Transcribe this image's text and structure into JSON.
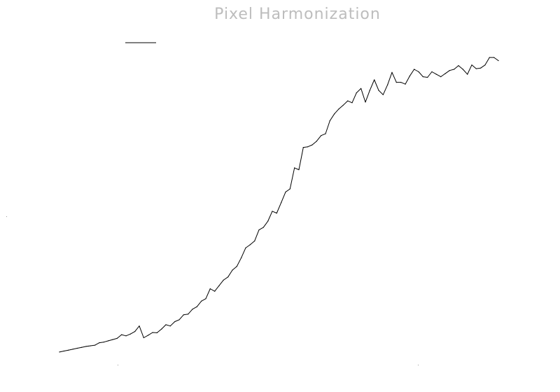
{
  "chart_data": {
    "type": "line",
    "title": "Pixel Harmonization",
    "xlabel": "",
    "ylabel": "",
    "legend": "top-left",
    "grid": false,
    "colors": {
      "line": "#000000",
      "legend": "#000000",
      "title": "#bdbdbd"
    },
    "x": [
      0,
      1,
      2,
      3,
      4,
      5,
      6,
      7,
      8,
      9,
      10,
      11,
      12,
      13,
      14,
      15,
      16,
      17,
      18,
      19,
      20,
      21,
      22,
      23,
      24,
      25,
      26,
      27,
      28,
      29,
      30,
      31,
      32,
      33,
      34,
      35,
      36,
      37,
      38,
      39,
      40,
      41,
      42,
      43,
      44,
      45,
      46,
      47,
      48,
      49,
      50,
      51,
      52,
      53,
      54,
      55,
      56,
      57,
      58,
      59,
      60,
      61,
      62,
      63,
      64,
      65,
      66,
      67,
      68,
      69,
      70,
      71,
      72,
      73,
      74,
      75,
      76,
      77,
      78,
      79,
      80,
      81,
      82,
      83,
      84,
      85,
      86,
      87,
      88,
      89,
      90,
      91,
      92,
      93,
      94,
      95,
      96,
      97,
      98,
      99
    ],
    "series": [
      {
        "values": [
          0.0,
          0.3,
          0.6,
          0.9,
          1.2,
          1.5,
          1.8,
          2.0,
          2.2,
          3.0,
          3.2,
          3.6,
          4.0,
          4.4,
          5.6,
          5.2,
          5.8,
          6.6,
          8.4,
          4.6,
          5.4,
          6.3,
          6.2,
          7.4,
          8.8,
          8.4,
          9.8,
          10.4,
          12.0,
          12.2,
          13.8,
          14.6,
          16.4,
          17.2,
          20.4,
          19.6,
          21.4,
          23.2,
          24.2,
          26.4,
          27.6,
          30.4,
          33.6,
          34.6,
          35.8,
          39.4,
          40.2,
          42.2,
          45.4,
          44.8,
          48.2,
          51.6,
          52.6,
          59.4,
          58.8,
          66.0,
          66.2,
          66.8,
          68.0,
          69.8,
          70.4,
          74.6,
          76.8,
          78.4,
          79.6,
          81.0,
          80.4,
          83.6,
          85.0,
          80.6,
          84.4,
          87.8,
          84.4,
          83.0,
          86.2,
          90.2,
          87.0,
          87.0,
          86.4,
          89.0,
          91.2,
          90.4,
          88.8,
          88.6,
          90.4,
          89.6,
          88.8,
          89.8,
          90.8,
          91.2,
          92.4,
          91.2,
          89.6,
          92.6,
          91.4,
          91.6,
          92.6,
          95.0,
          95.0,
          94.0
        ]
      }
    ],
    "xlim": [
      0,
      99
    ],
    "ylim": [
      -5,
      100
    ]
  }
}
